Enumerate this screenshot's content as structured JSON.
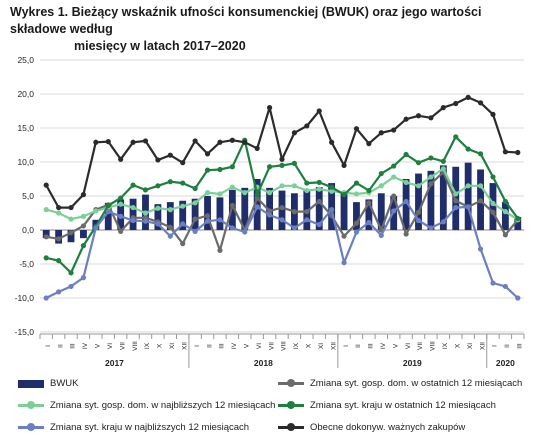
{
  "title_line1": "Wykres 1. Bieżący wskaźnik ufności konsumenckiej (BWUK) oraz jego wartości składowe według",
  "title_line2": "miesięcy w latach 2017–2020",
  "chart_data": {
    "type": "bar+line",
    "title": "Wykres 1. Bieżący wskaźnik ufności konsumenckiej (BWUK) oraz jego wartości składowe według miesięcy w latach 2017–2020",
    "ylim": [
      -15,
      25
    ],
    "yticks": [
      "25,0",
      "20,0",
      "15,0",
      "10,0",
      "5,0",
      "0,0",
      "-5,0",
      "-10,0",
      "-15,0"
    ],
    "ytick_values": [
      25,
      20,
      15,
      10,
      5,
      0,
      -5,
      -10,
      -15
    ],
    "grid": true,
    "month_labels": [
      "I",
      "II",
      "III",
      "IV",
      "V",
      "VI",
      "VII",
      "VIII",
      "IX",
      "X",
      "XI",
      "XII",
      "I",
      "II",
      "III",
      "IV",
      "V",
      "VI",
      "VII",
      "VIII",
      "IX",
      "X",
      "XI",
      "XII",
      "I",
      "II",
      "III",
      "IV",
      "V",
      "VI",
      "VII",
      "VIII",
      "IX",
      "X",
      "XI",
      "XII",
      "I",
      "II",
      "III"
    ],
    "year_labels": [
      {
        "label": "2017",
        "start": 0,
        "end": 11
      },
      {
        "label": "2018",
        "start": 12,
        "end": 23
      },
      {
        "label": "2019",
        "start": 24,
        "end": 35
      },
      {
        "label": "2020",
        "start": 36,
        "end": 38
      }
    ],
    "series": [
      {
        "name": "BWUK",
        "kind": "bar",
        "color": "#1f2d6b",
        "values": [
          -1.2,
          -2.0,
          -1.8,
          -1.2,
          1.5,
          4.0,
          4.5,
          4.6,
          5.2,
          3.8,
          4.1,
          4.3,
          4.6,
          5.0,
          4.8,
          5.9,
          6.2,
          7.5,
          6.2,
          5.8,
          5.4,
          5.8,
          6.3,
          6.9,
          5.3,
          4.1,
          4.5,
          5.4,
          5.0,
          7.5,
          8.3,
          8.7,
          9.5,
          9.3,
          9.9,
          8.9,
          6.9,
          4.1,
          1.9
        ]
      },
      {
        "name": "Zmiana syt. gosp. dom. w ostatnich 12 miesiącach",
        "kind": "line",
        "color": "#6b6b6b",
        "values": [
          -1.0,
          -1.3,
          -0.4,
          0.6,
          3.0,
          3.7,
          -0.2,
          1.8,
          1.8,
          1.2,
          0.4,
          -2.0,
          1.6,
          2.1,
          -3.0,
          3.6,
          0.0,
          4.7,
          2.8,
          3.3,
          2.7,
          2.7,
          4.2,
          2.1,
          -0.9,
          1.0,
          4.0,
          0.0,
          5.0,
          -0.6,
          2.6,
          6.8,
          8.5,
          4.3,
          3.4,
          4.3,
          2.6,
          -0.7,
          1.5
        ]
      },
      {
        "name": "Zmiana syt. gosp. dom. w najbliższych 12 miesiącach",
        "kind": "line",
        "color": "#7dcf9a",
        "values": [
          3.0,
          2.5,
          1.6,
          2.0,
          2.8,
          3.3,
          3.8,
          3.3,
          2.5,
          3.2,
          3.0,
          3.5,
          4.0,
          5.5,
          5.3,
          6.3,
          5.5,
          6.3,
          5.5,
          6.5,
          6.5,
          5.8,
          6.0,
          5.7,
          5.5,
          5.3,
          5.5,
          6.5,
          7.8,
          7.0,
          6.5,
          7.8,
          9.0,
          5.3,
          6.5,
          6.5,
          3.9,
          2.7,
          1.5
        ]
      },
      {
        "name": "Zmiana syt. kraju w ostatnich 12 miesiącach",
        "kind": "line",
        "color": "#1e7f3e",
        "values": [
          -4.1,
          -4.5,
          -6.3,
          -2.3,
          0.5,
          3.6,
          4.7,
          6.6,
          5.9,
          6.5,
          7.1,
          6.9,
          6.1,
          8.8,
          8.9,
          9.3,
          13.2,
          5.2,
          9.3,
          9.5,
          9.8,
          6.9,
          7.0,
          6.3,
          5.2,
          6.9,
          5.8,
          8.3,
          9.4,
          11.1,
          9.9,
          10.6,
          10.1,
          13.7,
          11.9,
          11.2,
          7.8,
          4.2,
          1.7
        ]
      },
      {
        "name": "Zmiana syt. kraju w najbliższych 12 miesiącach",
        "kind": "line",
        "color": "#6b7fc1",
        "values": [
          -10.0,
          -9.1,
          -8.3,
          -7.0,
          0.3,
          2.7,
          2.0,
          1.4,
          1.3,
          0.9,
          -0.9,
          0.9,
          -0.2,
          1.3,
          1.5,
          0.3,
          -0.3,
          3.4,
          2.2,
          1.5,
          0.3,
          1.5,
          0.8,
          3.0,
          -4.8,
          -0.3,
          1.1,
          -0.8,
          2.8,
          4.2,
          1.4,
          0.3,
          1.2,
          3.3,
          3.4,
          -2.8,
          -7.8,
          -8.3,
          -10.0
        ]
      },
      {
        "name": "Obecne dokonyw. ważnych zakupów",
        "kind": "line",
        "color": "#2b2b2b",
        "values": [
          6.6,
          3.3,
          3.3,
          5.2,
          12.9,
          13.0,
          10.4,
          12.9,
          13.1,
          10.3,
          11.0,
          9.9,
          13.1,
          11.2,
          12.9,
          13.2,
          12.9,
          12.0,
          18.0,
          10.4,
          14.3,
          15.3,
          17.5,
          12.9,
          9.5,
          14.9,
          12.7,
          14.3,
          14.7,
          16.3,
          16.8,
          16.5,
          18.0,
          18.6,
          19.5,
          18.7,
          17.0,
          11.5,
          11.4
        ]
      }
    ],
    "legend_placement": "bottom"
  },
  "legend": [
    {
      "label": "BWUK",
      "kind": "bar",
      "color": "#1f2d6b"
    },
    {
      "label": "Zmiana syt. gosp. dom. w ostatnich 12 miesiącach",
      "kind": "line",
      "color": "#6b6b6b"
    },
    {
      "label": "Zmiana syt. gosp. dom. w najbliższych 12 miesiącach",
      "kind": "line",
      "color": "#7dcf9a"
    },
    {
      "label": "Zmiana syt. kraju w ostatnich 12 miesiącach",
      "kind": "line",
      "color": "#1e7f3e"
    },
    {
      "label": "Zmiana syt. kraju w najbliższych 12 miesiącach",
      "kind": "line",
      "color": "#6b7fc1"
    },
    {
      "label": "Obecne dokonyw. ważnych zakupów",
      "kind": "line",
      "color": "#2b2b2b"
    }
  ]
}
